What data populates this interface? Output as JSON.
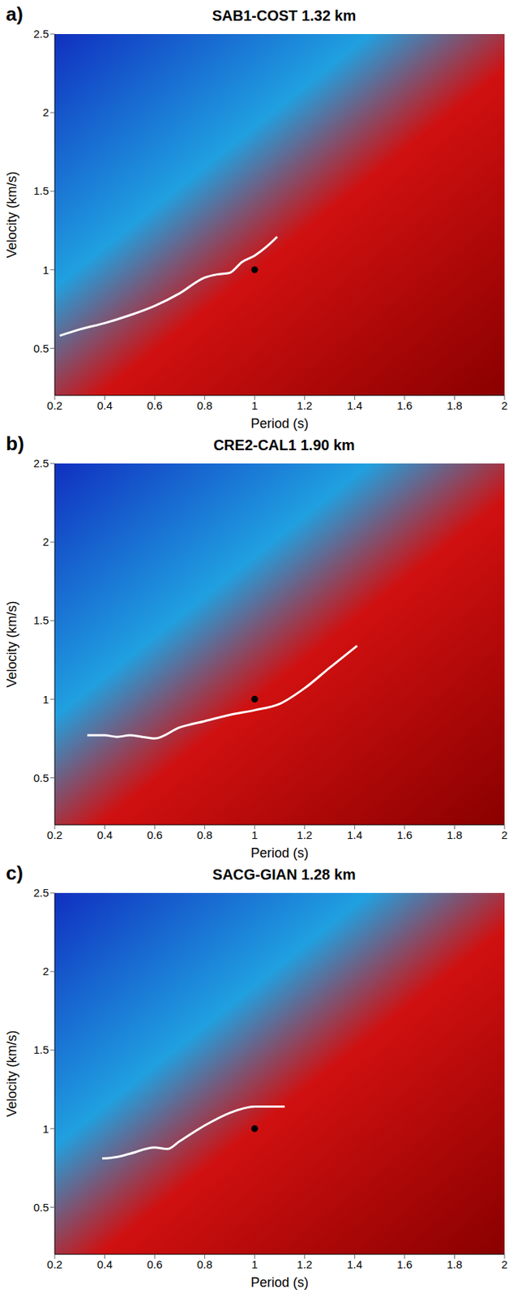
{
  "chart_data": [
    {
      "type": "line",
      "panel": "a)",
      "title": "SAB1-COST 1.32 km",
      "x_label": "Period (s)",
      "y_label": "Velocity (km/s)",
      "xlim": [
        0.2,
        2
      ],
      "xticks": [
        0.2,
        0.4,
        0.6,
        0.8,
        1,
        1.2,
        1.4,
        1.6,
        1.8,
        2
      ],
      "ylim": [
        0.2,
        2.5
      ],
      "yticks": [
        0.5,
        1,
        1.5,
        2,
        2.5
      ],
      "series": [
        {
          "type": "line",
          "color": "#ffffff",
          "x": [
            0.22,
            0.3,
            0.4,
            0.5,
            0.6,
            0.7,
            0.8,
            0.85,
            0.9,
            0.95,
            1.0,
            1.05,
            1.09
          ],
          "values": [
            0.58,
            0.62,
            0.66,
            0.71,
            0.77,
            0.85,
            0.95,
            0.97,
            0.98,
            1.05,
            1.09,
            1.15,
            1.21
          ]
        },
        {
          "type": "scatter",
          "color": "#000000",
          "marker": "circle",
          "x": [
            1
          ],
          "values": [
            1
          ]
        }
      ]
    },
    {
      "type": "line",
      "panel": "b)",
      "title": "CRE2-CAL1  1.90 km",
      "x_label": "Period (s)",
      "y_label": "Velocity (km/s)",
      "xlim": [
        0.2,
        2
      ],
      "xticks": [
        0.2,
        0.4,
        0.6,
        0.8,
        1,
        1.2,
        1.4,
        1.6,
        1.8,
        2
      ],
      "ylim": [
        0.2,
        2.5
      ],
      "yticks": [
        0.5,
        1,
        1.5,
        2,
        2.5
      ],
      "series": [
        {
          "type": "line",
          "color": "#ffffff",
          "x": [
            0.33,
            0.4,
            0.45,
            0.5,
            0.55,
            0.6,
            0.7,
            0.8,
            0.9,
            1.0,
            1.1,
            1.2,
            1.3,
            1.41
          ],
          "values": [
            0.77,
            0.77,
            0.76,
            0.77,
            0.76,
            0.75,
            0.82,
            0.86,
            0.9,
            0.93,
            0.97,
            1.07,
            1.2,
            1.34
          ]
        },
        {
          "type": "scatter",
          "color": "#000000",
          "marker": "circle",
          "x": [
            1
          ],
          "values": [
            1
          ]
        }
      ]
    },
    {
      "type": "line",
      "panel": "c)",
      "title": "SACG-GIAN 1.28 km",
      "x_label": "Period (s)",
      "y_label": "Velocity (km/s)",
      "xlim": [
        0.2,
        2
      ],
      "xticks": [
        0.2,
        0.4,
        0.6,
        0.8,
        1,
        1.2,
        1.4,
        1.6,
        1.8,
        2
      ],
      "ylim": [
        0.2,
        2.5
      ],
      "yticks": [
        0.5,
        1,
        1.5,
        2,
        2.5
      ],
      "series": [
        {
          "type": "line",
          "color": "#ffffff",
          "x": [
            0.39,
            0.45,
            0.5,
            0.6,
            0.65,
            0.7,
            0.8,
            0.9,
            1.0,
            1.05,
            1.12
          ],
          "values": [
            0.81,
            0.82,
            0.84,
            0.88,
            0.87,
            0.92,
            1.02,
            1.1,
            1.14,
            1.14,
            1.14
          ]
        },
        {
          "type": "scatter",
          "color": "#000000",
          "marker": "circle",
          "x": [
            1
          ],
          "values": [
            1
          ]
        }
      ]
    }
  ]
}
